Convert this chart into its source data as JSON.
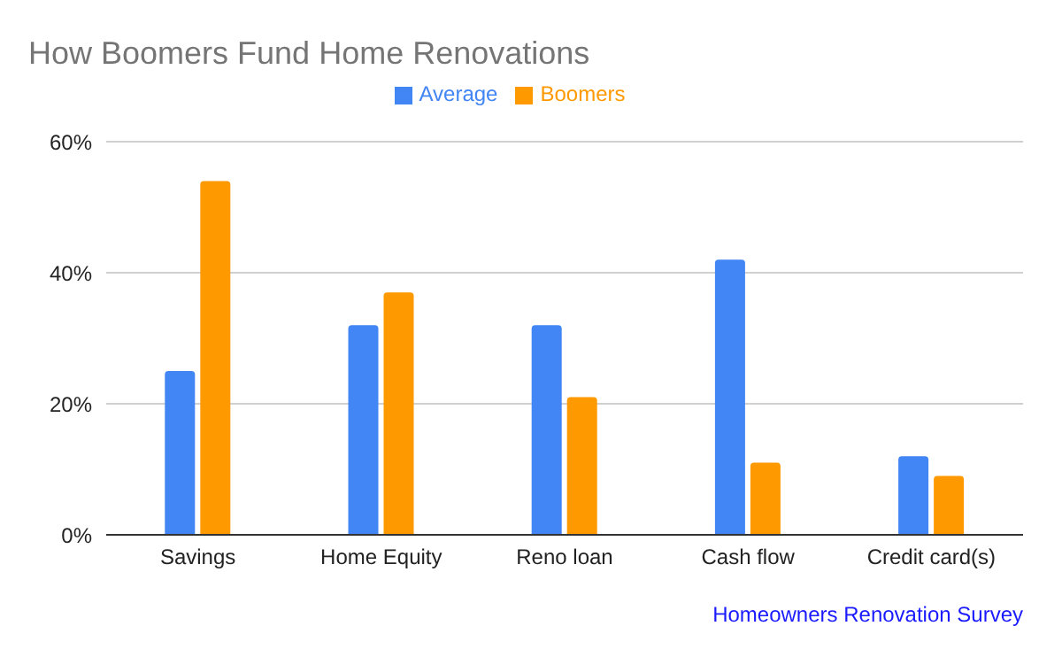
{
  "chart_data": {
    "type": "bar",
    "title": "How Boomers Fund Home Renovations",
    "categories": [
      "Savings",
      "Home Equity",
      "Reno loan",
      "Cash flow",
      "Credit card(s)"
    ],
    "series": [
      {
        "name": "Average",
        "color": "#4285f4",
        "values": [
          25,
          32,
          32,
          42,
          12
        ]
      },
      {
        "name": "Boomers",
        "color": "#ff9900",
        "values": [
          54,
          37,
          21,
          11,
          9
        ]
      }
    ],
    "ylim": [
      0,
      60
    ],
    "yticks": [
      {
        "value": 0,
        "label": "0%"
      },
      {
        "value": 20,
        "label": "20%"
      },
      {
        "value": 40,
        "label": "40%"
      },
      {
        "value": 60,
        "label": "60%"
      }
    ],
    "grid": "y",
    "legend": "top",
    "annotations": [
      "Homeowners Renovation Survey"
    ]
  }
}
